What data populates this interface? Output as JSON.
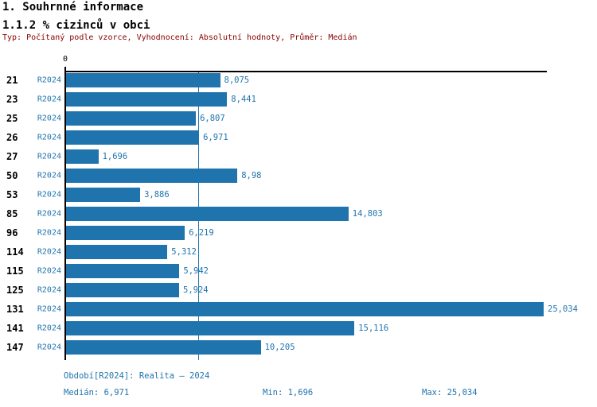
{
  "header": {
    "title": "1. Souhrnné informace",
    "subtitle": "1.1.2 % cizinců v obci",
    "meta": "Typ: Počítaný podle vzorce, Vyhodnocení: Absolutní hodnoty, Průměr: Medián"
  },
  "chart_data": {
    "type": "bar",
    "orientation": "horizontal",
    "title": "1.1.2 % cizinců v obci",
    "axis_zero_label": "0",
    "categories": [
      "21",
      "23",
      "25",
      "26",
      "27",
      "50",
      "53",
      "85",
      "96",
      "114",
      "115",
      "125",
      "131",
      "141",
      "147"
    ],
    "series": [
      {
        "name": "R2024",
        "values": [
          8.075,
          8.441,
          6.807,
          6.971,
          1.696,
          8.98,
          3.886,
          14.803,
          6.219,
          5.312,
          5.942,
          5.924,
          25.034,
          15.116,
          10.205
        ]
      }
    ],
    "value_labels": [
      "8,075",
      "8,441",
      "6,807",
      "6,971",
      "1,696",
      "8,98",
      "3,886",
      "14,803",
      "6,219",
      "5,312",
      "5,942",
      "5,924",
      "25,034",
      "15,116",
      "10,205"
    ],
    "xlim": [
      0,
      25.034
    ],
    "median": 6.971,
    "grid": false,
    "legend_position": "none"
  },
  "footer": {
    "period": "Období[R2024]: Realita – 2024",
    "median": "Medián: 6,971",
    "min": "Min: 1,696",
    "max": "Max: 25,034"
  },
  "colors": {
    "bar": "#1F74AD",
    "accent": "#1F74AD",
    "median": "#1F74AD",
    "meta": "#8B0000"
  }
}
